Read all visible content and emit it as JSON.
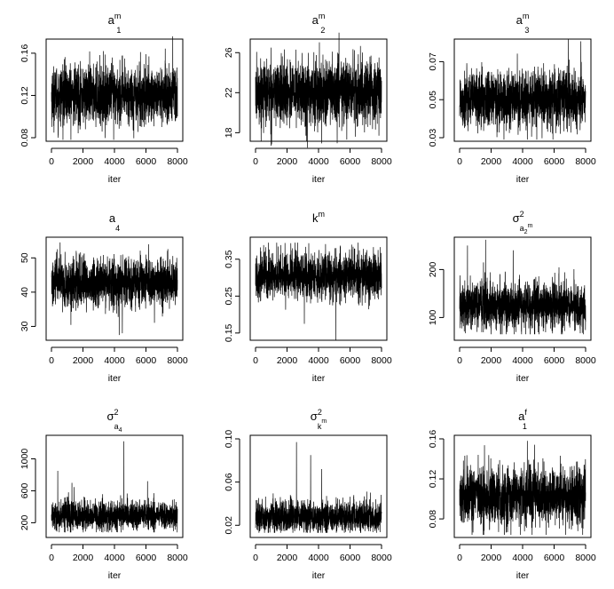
{
  "chart_data": [
    {
      "type": "line",
      "title": "a1^m",
      "title_base": "a",
      "title_sub": "1",
      "title_sup": "m",
      "xlabel": "iter",
      "xlim": [
        0,
        8000
      ],
      "xticks": [
        0,
        2000,
        4000,
        6000,
        8000
      ],
      "ylim": [
        0.08,
        0.17
      ],
      "yticks": [
        "0.08",
        "0.12",
        "0.16"
      ],
      "series": [
        {
          "n_iter": 8000,
          "mean": 0.12,
          "spread": 0.014,
          "min": 0.078,
          "max": 0.176,
          "spikes": [
            [
              7700,
              0.176
            ],
            [
              3950,
              0.078
            ]
          ]
        }
      ]
    },
    {
      "type": "line",
      "title": "a2^m",
      "title_base": "a",
      "title_sub": "2",
      "title_sup": "m",
      "xlabel": "iter",
      "xlim": [
        0,
        8000
      ],
      "xticks": [
        0,
        2000,
        4000,
        6000,
        8000
      ],
      "ylim": [
        17.5,
        27
      ],
      "yticks": [
        "18",
        "22",
        "26"
      ],
      "series": [
        {
          "n_iter": 8000,
          "mean": 22,
          "spread": 1.6,
          "min": 16.5,
          "max": 28,
          "spikes": [
            [
              3300,
              16.5
            ],
            [
              5300,
              28
            ]
          ]
        }
      ]
    },
    {
      "type": "line",
      "title": "a3^m",
      "title_base": "a",
      "title_sub": "3",
      "title_sup": "m",
      "xlabel": "iter",
      "xlim": [
        0,
        8000
      ],
      "xticks": [
        0,
        2000,
        4000,
        6000,
        8000
      ],
      "ylim": [
        0.03,
        0.08
      ],
      "yticks": [
        "0.03",
        "0.05",
        "0.07"
      ],
      "series": [
        {
          "n_iter": 8000,
          "mean": 0.05,
          "spread": 0.0075,
          "min": 0.029,
          "max": 0.082,
          "spikes": [
            [
              6900,
              0.082
            ],
            [
              4300,
              0.029
            ]
          ]
        }
      ]
    },
    {
      "type": "line",
      "title": "a4",
      "title_base": "a",
      "title_sub": "4",
      "title_sup": "",
      "xlabel": "iter",
      "xlim": [
        0,
        8000
      ],
      "xticks": [
        0,
        2000,
        4000,
        6000,
        8000
      ],
      "ylim": [
        27,
        55
      ],
      "yticks": [
        "30",
        "40",
        "50"
      ],
      "series": [
        {
          "n_iter": 8000,
          "mean": 42.5,
          "spread": 3.6,
          "min": 27.5,
          "max": 55,
          "spikes": [
            [
              4300,
              27.5
            ],
            [
              4500,
              28
            ],
            [
              550,
              54.5
            ]
          ]
        }
      ]
    },
    {
      "type": "line",
      "title": "k^m",
      "title_base": "k",
      "title_sub": "",
      "title_sup": "m",
      "xlabel": "iter",
      "xlim": [
        0,
        8000
      ],
      "xticks": [
        0,
        2000,
        4000,
        6000,
        8000
      ],
      "ylim": [
        0.14,
        0.4
      ],
      "yticks": [
        "0.15",
        "0.25",
        "0.35"
      ],
      "series": [
        {
          "n_iter": 8000,
          "mean": 0.305,
          "spread": 0.032,
          "min": 0.13,
          "max": 0.395,
          "spikes": [
            [
              5100,
              0.13
            ],
            [
              3100,
              0.175
            ],
            [
              6500,
              0.395
            ]
          ]
        }
      ]
    },
    {
      "type": "line",
      "title": "σ²_{a2^m}",
      "title_base": "σ",
      "title_sub": "a",
      "title_sup": "2",
      "title_subsub": "2",
      "title_subsup": "m",
      "xlabel": "iter",
      "xlim": [
        0,
        8000
      ],
      "xticks": [
        0,
        2000,
        4000,
        6000,
        8000
      ],
      "ylim": [
        60,
        260
      ],
      "yticks": [
        "100",
        "200"
      ],
      "series": [
        {
          "n_iter": 8000,
          "mean": 125,
          "spread": 25,
          "min": 65,
          "max": 262,
          "spikes": [
            [
              1650,
              262
            ],
            [
              500,
              250
            ],
            [
              3400,
              240
            ]
          ]
        }
      ]
    },
    {
      "type": "line",
      "title": "σ²_{a4}",
      "title_base": "σ",
      "title_sub": "a",
      "title_sup": "2",
      "title_subsub": "4",
      "title_subsup": "",
      "xlabel": "iter",
      "xlim": [
        0,
        8000
      ],
      "xticks": [
        0,
        2000,
        4000,
        6000,
        8000
      ],
      "ylim": [
        60,
        1250
      ],
      "yticks": [
        "200",
        "600",
        "1000"
      ],
      "series": [
        {
          "n_iter": 8000,
          "mean": 290,
          "spread": 90,
          "min": 80,
          "max": 1220,
          "spikes": [
            [
              4600,
              1220
            ],
            [
              400,
              850
            ],
            [
              1300,
              700
            ],
            [
              6100,
              720
            ]
          ]
        }
      ]
    },
    {
      "type": "line",
      "title": "σ²_{k^m}",
      "title_base": "σ",
      "title_sub": "k",
      "title_sup": "2",
      "title_subsub": "",
      "title_subsup": "m",
      "xlabel": "iter",
      "xlim": [
        0,
        8000
      ],
      "xticks": [
        0,
        2000,
        4000,
        6000,
        8000
      ],
      "ylim": [
        0.012,
        0.1
      ],
      "yticks": [
        "0.02",
        "0.06",
        "0.10"
      ],
      "series": [
        {
          "n_iter": 8000,
          "mean": 0.028,
          "spread": 0.0075,
          "min": 0.013,
          "max": 0.097,
          "spikes": [
            [
              2600,
              0.097
            ],
            [
              3500,
              0.085
            ],
            [
              4200,
              0.072
            ]
          ]
        }
      ]
    },
    {
      "type": "line",
      "title": "a1^f",
      "title_base": "a",
      "title_sub": "1",
      "title_sup": "f",
      "xlabel": "iter",
      "xlim": [
        0,
        8000
      ],
      "xticks": [
        0,
        2000,
        4000,
        6000,
        8000
      ],
      "ylim": [
        0.065,
        0.16
      ],
      "yticks": [
        "0.08",
        "0.12",
        "0.16"
      ],
      "series": [
        {
          "n_iter": 8000,
          "mean": 0.103,
          "spread": 0.0145,
          "min": 0.064,
          "max": 0.158,
          "spikes": [
            [
              4300,
              0.158
            ],
            [
              1500,
              0.064
            ]
          ]
        }
      ]
    }
  ]
}
